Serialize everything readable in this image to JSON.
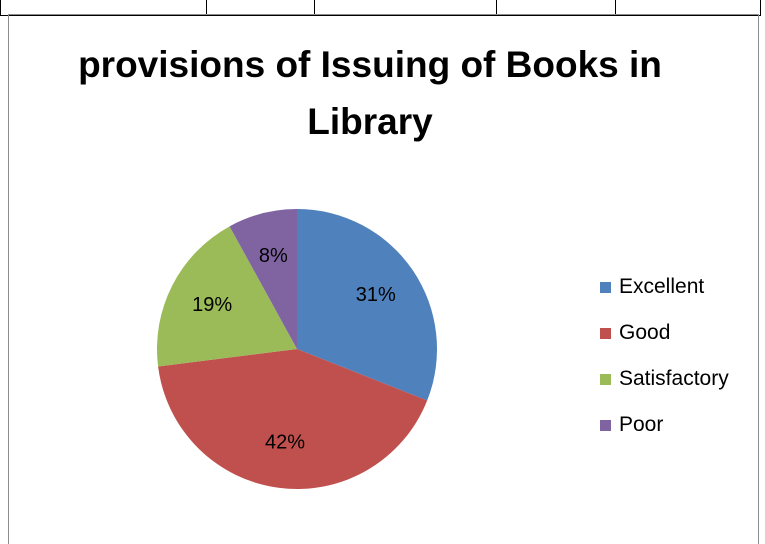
{
  "chart_data": {
    "type": "pie",
    "title": "provisions of Issuing of Books in Library",
    "categories": [
      "Excellent",
      "Good",
      "Satisfactory",
      "Poor"
    ],
    "values": [
      31,
      42,
      19,
      8
    ],
    "labels": [
      "31%",
      "42%",
      "19%",
      "8%"
    ],
    "colors": [
      "#4F81BD",
      "#C0504D",
      "#9BBB59",
      "#8064A2"
    ],
    "legend_position": "right",
    "start_angle_deg": 0,
    "direction": "clockwise"
  }
}
